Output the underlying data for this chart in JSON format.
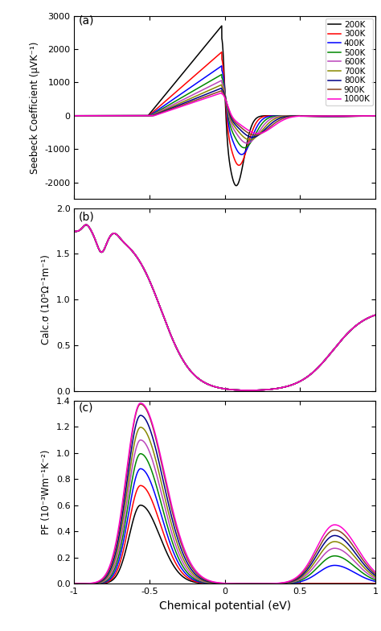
{
  "temperatures": [
    200,
    300,
    400,
    500,
    600,
    700,
    800,
    900,
    1000
  ],
  "colors": [
    "#000000",
    "#ff0000",
    "#0000ff",
    "#008800",
    "#bb44bb",
    "#888800",
    "#000088",
    "#884422",
    "#ff00cc"
  ],
  "x_range": [
    -1.0,
    1.0
  ],
  "panel_a": {
    "ylabel": "Seebeck Coefficient (μVK⁻¹)",
    "ylim": [
      -2500,
      3000
    ],
    "yticks": [
      -2000,
      -1000,
      0,
      1000,
      2000,
      3000
    ],
    "label": "(a)"
  },
  "panel_b": {
    "ylabel": "Calc.σ (10⁵Ω⁻¹m⁻¹)",
    "ylim": [
      0.0,
      2.0
    ],
    "yticks": [
      0.0,
      0.5,
      1.0,
      1.5,
      2.0
    ],
    "label": "(b)"
  },
  "panel_c": {
    "ylabel": "PF (10⁻³Wm⁻¹K⁻²)",
    "ylim": [
      0.0,
      1.4
    ],
    "yticks": [
      0.0,
      0.2,
      0.4,
      0.6,
      0.8,
      1.0,
      1.2,
      1.4
    ],
    "label": "(c)"
  },
  "xlabel": "Chemical potential (eV)",
  "legend_labels": [
    "200K",
    "300K",
    "400K",
    "500K",
    "600K",
    "700K",
    "800K",
    "900K",
    "1000K"
  ]
}
